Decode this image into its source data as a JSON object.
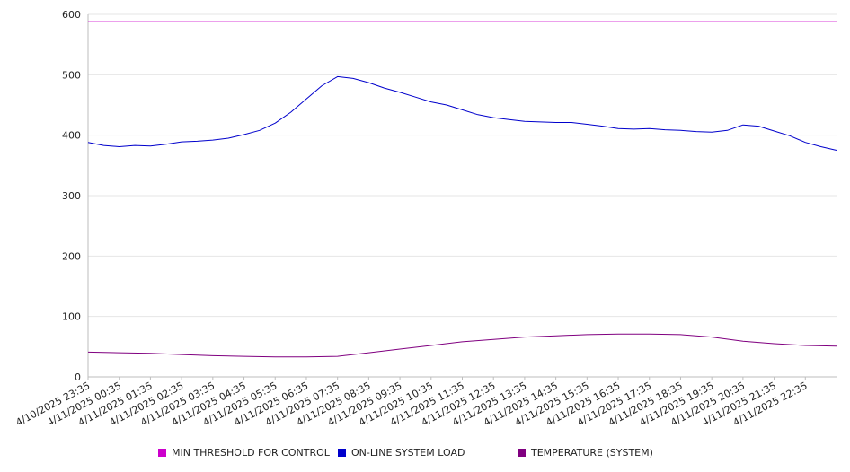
{
  "chart_data": {
    "type": "line",
    "ylim": [
      0,
      600
    ],
    "y_ticks": [
      0,
      100,
      200,
      300,
      400,
      500,
      600
    ],
    "x_tick_labels": [
      "4/10/2025 23:35",
      "4/11/2025 00:35",
      "4/11/2025 01:35",
      "4/11/2025 02:35",
      "4/11/2025 03:35",
      "4/11/2025 04:35",
      "4/11/2025 05:35",
      "4/11/2025 06:35",
      "4/11/2025 07:35",
      "4/11/2025 08:35",
      "4/11/2025 09:35",
      "4/11/2025 10:35",
      "4/11/2025 11:35",
      "4/11/2025 12:35",
      "4/11/2025 13:35",
      "4/11/2025 14:35",
      "4/11/2025 15:35",
      "4/11/2025 16:35",
      "4/11/2025 17:35",
      "4/11/2025 18:35",
      "4/11/2025 19:35",
      "4/11/2025 20:35",
      "4/11/2025 21:35",
      "4/11/2025 22:35"
    ],
    "grid": true,
    "legend_position": "bottom",
    "series": [
      {
        "name": "MIN THRESHOLD FOR CONTROL",
        "color": "#cc00cc",
        "x": [
          "4/10/2025 23:35",
          "4/11/2025 23:35"
        ],
        "values": [
          588,
          588
        ]
      },
      {
        "name": "ON-LINE SYSTEM LOAD",
        "color": "#0000cc",
        "x": [
          "4/10/2025 23:35",
          "4/11/2025 00:05",
          "4/11/2025 00:35",
          "4/11/2025 01:05",
          "4/11/2025 01:35",
          "4/11/2025 02:05",
          "4/11/2025 02:35",
          "4/11/2025 03:05",
          "4/11/2025 03:35",
          "4/11/2025 04:05",
          "4/11/2025 04:35",
          "4/11/2025 05:05",
          "4/11/2025 05:35",
          "4/11/2025 06:05",
          "4/11/2025 06:35",
          "4/11/2025 07:05",
          "4/11/2025 07:35",
          "4/11/2025 08:05",
          "4/11/2025 08:35",
          "4/11/2025 09:05",
          "4/11/2025 09:35",
          "4/11/2025 10:05",
          "4/11/2025 10:35",
          "4/11/2025 11:05",
          "4/11/2025 11:35",
          "4/11/2025 12:05",
          "4/11/2025 12:35",
          "4/11/2025 13:05",
          "4/11/2025 13:35",
          "4/11/2025 14:05",
          "4/11/2025 14:35",
          "4/11/2025 15:05",
          "4/11/2025 15:35",
          "4/11/2025 16:05",
          "4/11/2025 16:35",
          "4/11/2025 17:05",
          "4/11/2025 17:35",
          "4/11/2025 18:05",
          "4/11/2025 18:35",
          "4/11/2025 19:05",
          "4/11/2025 19:35",
          "4/11/2025 20:05",
          "4/11/2025 20:35",
          "4/11/2025 21:05",
          "4/11/2025 21:35",
          "4/11/2025 22:05",
          "4/11/2025 22:35",
          "4/11/2025 23:05",
          "4/11/2025 23:35"
        ],
        "values": [
          388,
          383,
          381,
          383,
          382,
          385,
          389,
          390,
          392,
          395,
          401,
          408,
          420,
          438,
          460,
          482,
          497,
          494,
          487,
          478,
          471,
          463,
          455,
          450,
          442,
          434,
          429,
          426,
          423,
          422,
          421,
          421,
          418,
          415,
          411,
          410,
          411,
          409,
          408,
          406,
          405,
          408,
          417,
          415,
          407,
          399,
          388,
          381,
          375
        ]
      },
      {
        "name": "TEMPERATURE (SYSTEM)",
        "color": "#800080",
        "x": [
          "4/10/2025 23:35",
          "4/11/2025 00:35",
          "4/11/2025 01:35",
          "4/11/2025 02:35",
          "4/11/2025 03:35",
          "4/11/2025 04:35",
          "4/11/2025 05:35",
          "4/11/2025 06:35",
          "4/11/2025 07:35",
          "4/11/2025 08:35",
          "4/11/2025 09:35",
          "4/11/2025 10:35",
          "4/11/2025 11:35",
          "4/11/2025 12:35",
          "4/11/2025 13:35",
          "4/11/2025 14:35",
          "4/11/2025 15:35",
          "4/11/2025 16:35",
          "4/11/2025 17:35",
          "4/11/2025 18:35",
          "4/11/2025 19:35",
          "4/11/2025 20:35",
          "4/11/2025 21:35",
          "4/11/2025 22:35",
          "4/11/2025 23:35"
        ],
        "values": [
          41,
          40,
          39,
          37,
          35,
          34,
          33,
          33,
          34,
          40,
          46,
          52,
          58,
          62,
          66,
          68,
          70,
          71,
          71,
          70,
          66,
          59,
          55,
          52,
          51
        ]
      }
    ]
  }
}
